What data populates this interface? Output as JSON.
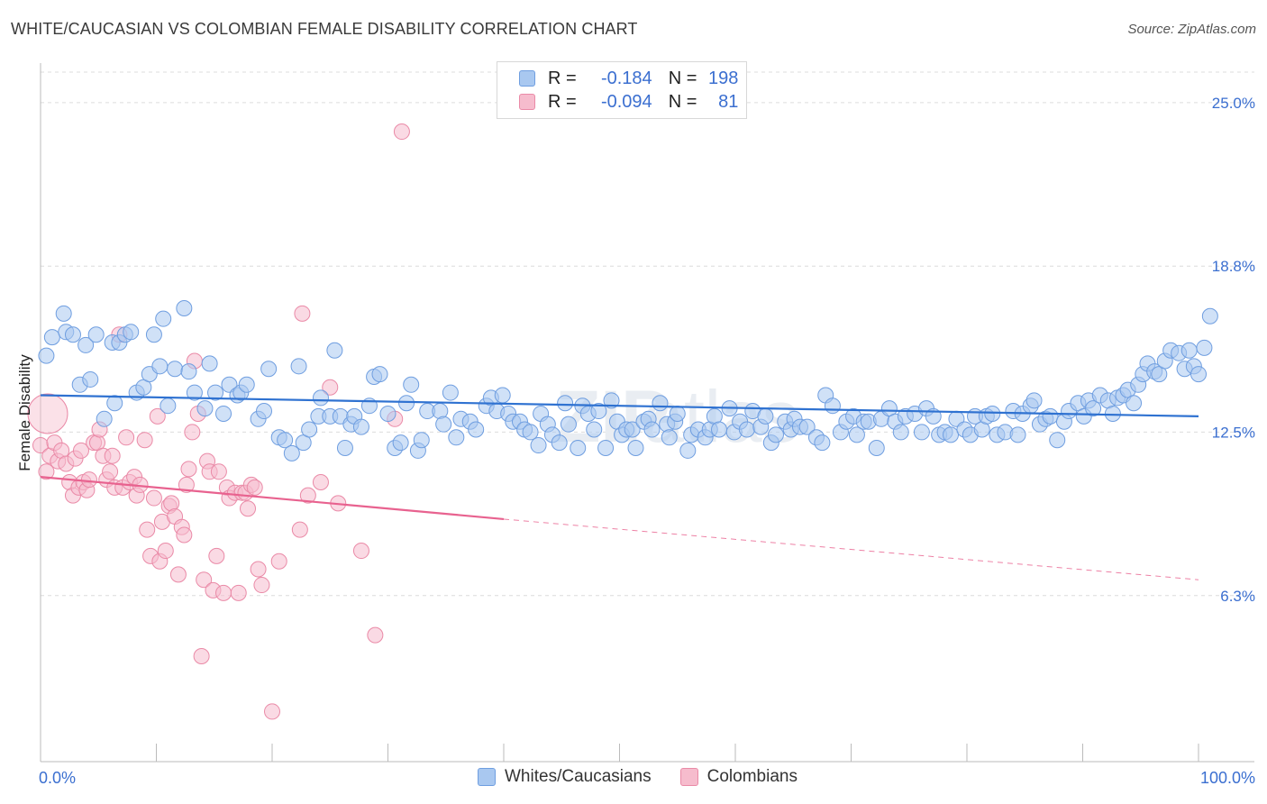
{
  "title": "WHITE/CAUCASIAN VS COLOMBIAN FEMALE DISABILITY CORRELATION CHART",
  "source": "Source: ZipAtlas.com",
  "legend": {
    "rows": [
      {
        "r_label": "R =",
        "r_value": "-0.184",
        "n_label": "N =",
        "n_value": "198"
      },
      {
        "r_label": "R =",
        "r_value": "-0.094",
        "n_label": "N =",
        "n_value": "81"
      }
    ]
  },
  "bottom_legend": [
    "Whites/Caucasians",
    "Colombians"
  ],
  "colors": {
    "blue_fill": "#a9c8f0",
    "blue_stroke": "#6f9ee0",
    "blue_line": "#2f72d1",
    "pink_fill": "#f6bccd",
    "pink_stroke": "#ea8aa7",
    "pink_line": "#e8628f",
    "tick_label": "#3b6fd0"
  },
  "chart_data": {
    "type": "scatter",
    "title": "WHITE/CAUCASIAN VS COLOMBIAN FEMALE DISABILITY CORRELATION CHART",
    "xlabel": "",
    "ylabel": "Female Disability",
    "xlim": [
      0,
      100
    ],
    "ylim": [
      0,
      26.5
    ],
    "x_tick_labels": [
      "0.0%",
      "100.0%"
    ],
    "y_ticks": [
      6.3,
      12.5,
      18.8,
      25.0
    ],
    "y_tick_labels": [
      "6.3%",
      "12.5%",
      "18.8%",
      "25.0%"
    ],
    "grid": true,
    "legend_position": "top-center",
    "series": [
      {
        "name": "Whites/Caucasians",
        "r": -0.184,
        "n": 198,
        "trend": {
          "x": [
            0,
            100
          ],
          "y": [
            13.9,
            13.1
          ]
        },
        "points": [
          [
            0.5,
            15.4
          ],
          [
            1,
            16.1
          ],
          [
            2,
            17.0
          ],
          [
            2.2,
            16.3
          ],
          [
            2.8,
            16.2
          ],
          [
            3.4,
            14.3
          ],
          [
            3.9,
            15.8
          ],
          [
            4.3,
            14.5
          ],
          [
            4.8,
            16.2
          ],
          [
            5.5,
            13.0
          ],
          [
            6.2,
            15.9
          ],
          [
            6.4,
            13.6
          ],
          [
            6.8,
            15.9
          ],
          [
            7.3,
            16.2
          ],
          [
            7.8,
            16.3
          ],
          [
            8.3,
            14.0
          ],
          [
            8.9,
            14.2
          ],
          [
            9.4,
            14.7
          ],
          [
            9.8,
            16.2
          ],
          [
            10.3,
            15.0
          ],
          [
            10.6,
            16.8
          ],
          [
            11,
            13.5
          ],
          [
            11.6,
            14.9
          ],
          [
            12.4,
            17.2
          ],
          [
            12.8,
            14.8
          ],
          [
            13.3,
            14.0
          ],
          [
            14.2,
            13.4
          ],
          [
            14.6,
            15.1
          ],
          [
            15.1,
            14.0
          ],
          [
            15.8,
            13.2
          ],
          [
            16.3,
            14.3
          ],
          [
            17,
            13.9
          ],
          [
            17.3,
            14.0
          ],
          [
            17.8,
            14.3
          ],
          [
            18.8,
            13.0
          ],
          [
            19.3,
            13.3
          ],
          [
            19.7,
            14.9
          ],
          [
            20.6,
            12.3
          ],
          [
            21.1,
            12.2
          ],
          [
            21.7,
            11.7
          ],
          [
            22.3,
            15.0
          ],
          [
            22.7,
            12.1
          ],
          [
            23.2,
            12.6
          ],
          [
            24,
            13.1
          ],
          [
            24.2,
            13.8
          ],
          [
            25,
            13.1
          ],
          [
            25.4,
            15.6
          ],
          [
            25.9,
            13.1
          ],
          [
            26.3,
            11.9
          ],
          [
            26.8,
            12.8
          ],
          [
            27.1,
            13.1
          ],
          [
            27.7,
            12.7
          ],
          [
            28.4,
            13.5
          ],
          [
            28.8,
            14.6
          ],
          [
            29.3,
            14.7
          ],
          [
            30,
            13.2
          ],
          [
            30.6,
            11.9
          ],
          [
            31.1,
            12.1
          ],
          [
            31.6,
            13.6
          ],
          [
            32,
            14.3
          ],
          [
            32.6,
            11.8
          ],
          [
            32.9,
            12.2
          ],
          [
            33.4,
            13.3
          ],
          [
            34.5,
            13.3
          ],
          [
            34.8,
            12.8
          ],
          [
            35.4,
            14.0
          ],
          [
            35.9,
            12.3
          ],
          [
            36.3,
            13.0
          ],
          [
            37.1,
            12.9
          ],
          [
            37.6,
            12.6
          ],
          [
            38.5,
            13.5
          ],
          [
            38.9,
            13.8
          ],
          [
            39.4,
            13.3
          ],
          [
            39.9,
            13.9
          ],
          [
            40.4,
            13.2
          ],
          [
            40.8,
            12.9
          ],
          [
            41.4,
            12.9
          ],
          [
            41.8,
            12.6
          ],
          [
            42.3,
            12.5
          ],
          [
            43,
            12.0
          ],
          [
            43.2,
            13.2
          ],
          [
            43.8,
            12.8
          ],
          [
            44.2,
            12.4
          ],
          [
            44.8,
            12.1
          ],
          [
            45.3,
            13.6
          ],
          [
            45.6,
            12.8
          ],
          [
            46.4,
            11.9
          ],
          [
            46.8,
            13.5
          ],
          [
            47.3,
            13.2
          ],
          [
            47.8,
            12.6
          ],
          [
            48.2,
            13.3
          ],
          [
            48.8,
            11.9
          ],
          [
            49.3,
            13.7
          ],
          [
            49.8,
            12.9
          ],
          [
            50.2,
            12.4
          ],
          [
            50.6,
            12.6
          ],
          [
            51.1,
            12.6
          ],
          [
            51.4,
            11.9
          ],
          [
            52.1,
            12.9
          ],
          [
            52.5,
            13.0
          ],
          [
            52.8,
            12.6
          ],
          [
            53.5,
            13.6
          ],
          [
            54.1,
            12.8
          ],
          [
            54.3,
            12.3
          ],
          [
            54.8,
            12.9
          ],
          [
            55,
            13.2
          ],
          [
            55.9,
            11.8
          ],
          [
            56.2,
            12.4
          ],
          [
            56.8,
            12.6
          ],
          [
            57.4,
            12.3
          ],
          [
            57.8,
            12.6
          ],
          [
            58.2,
            13.1
          ],
          [
            58.6,
            12.6
          ],
          [
            59.5,
            13.4
          ],
          [
            59.9,
            12.5
          ],
          [
            60.4,
            12.9
          ],
          [
            61,
            12.6
          ],
          [
            61.5,
            13.3
          ],
          [
            62.2,
            12.7
          ],
          [
            62.6,
            13.1
          ],
          [
            63.1,
            12.1
          ],
          [
            63.5,
            12.4
          ],
          [
            64.3,
            12.9
          ],
          [
            64.8,
            12.6
          ],
          [
            65.1,
            13.0
          ],
          [
            65.6,
            12.7
          ],
          [
            66.2,
            12.7
          ],
          [
            67,
            12.3
          ],
          [
            67.5,
            12.1
          ],
          [
            67.8,
            13.9
          ],
          [
            68.4,
            13.5
          ],
          [
            69.1,
            12.5
          ],
          [
            69.6,
            12.9
          ],
          [
            70.2,
            13.1
          ],
          [
            70.5,
            12.4
          ],
          [
            71.1,
            12.9
          ],
          [
            71.5,
            12.9
          ],
          [
            72.2,
            11.9
          ],
          [
            72.6,
            13.0
          ],
          [
            73.3,
            13.4
          ],
          [
            73.8,
            12.9
          ],
          [
            74.3,
            12.5
          ],
          [
            74.7,
            13.1
          ],
          [
            75.5,
            13.2
          ],
          [
            76.1,
            12.5
          ],
          [
            76.5,
            13.4
          ],
          [
            77.1,
            13.1
          ],
          [
            77.6,
            12.4
          ],
          [
            78.1,
            12.5
          ],
          [
            78.6,
            12.4
          ],
          [
            79.1,
            13.0
          ],
          [
            79.8,
            12.6
          ],
          [
            80.3,
            12.4
          ],
          [
            80.7,
            13.1
          ],
          [
            81.3,
            12.6
          ],
          [
            81.7,
            13.1
          ],
          [
            82.2,
            13.2
          ],
          [
            82.6,
            12.4
          ],
          [
            83.3,
            12.5
          ],
          [
            84,
            13.3
          ],
          [
            84.4,
            12.4
          ],
          [
            84.8,
            13.2
          ],
          [
            85.5,
            13.5
          ],
          [
            85.8,
            13.7
          ],
          [
            86.3,
            12.8
          ],
          [
            86.8,
            13.0
          ],
          [
            87.2,
            13.1
          ],
          [
            87.8,
            12.2
          ],
          [
            88.4,
            12.9
          ],
          [
            88.8,
            13.3
          ],
          [
            89.6,
            13.6
          ],
          [
            90.1,
            13.1
          ],
          [
            90.5,
            13.7
          ],
          [
            90.9,
            13.4
          ],
          [
            91.5,
            13.9
          ],
          [
            92.2,
            13.7
          ],
          [
            92.6,
            13.2
          ],
          [
            93,
            13.8
          ],
          [
            93.5,
            13.9
          ],
          [
            93.9,
            14.1
          ],
          [
            94.4,
            13.6
          ],
          [
            94.8,
            14.3
          ],
          [
            95.2,
            14.7
          ],
          [
            95.6,
            15.1
          ],
          [
            96.2,
            14.8
          ],
          [
            96.6,
            14.7
          ],
          [
            97.1,
            15.2
          ],
          [
            97.6,
            15.6
          ],
          [
            98.3,
            15.5
          ],
          [
            98.8,
            14.9
          ],
          [
            99.2,
            15.6
          ],
          [
            99.6,
            15.0
          ],
          [
            100,
            14.7
          ],
          [
            100.5,
            15.7
          ],
          [
            101,
            16.9
          ]
        ]
      },
      {
        "name": "Colombians",
        "r": -0.094,
        "n": 81,
        "trend": {
          "x": [
            0,
            40
          ],
          "y": [
            10.8,
            9.2
          ]
        },
        "trend_extended": {
          "x": [
            40,
            100
          ],
          "y": [
            9.2,
            6.9
          ]
        },
        "points": [
          [
            0,
            13.2
          ],
          [
            0,
            12.0
          ],
          [
            0.5,
            11.0
          ],
          [
            0.8,
            11.6
          ],
          [
            1.2,
            12.1
          ],
          [
            1.5,
            11.4
          ],
          [
            1.8,
            11.8
          ],
          [
            2.2,
            11.3
          ],
          [
            2.5,
            10.6
          ],
          [
            2.8,
            10.1
          ],
          [
            3,
            11.5
          ],
          [
            3.3,
            10.4
          ],
          [
            3.5,
            11.8
          ],
          [
            3.7,
            10.6
          ],
          [
            4,
            10.3
          ],
          [
            4.2,
            10.7
          ],
          [
            4.6,
            12.1
          ],
          [
            4.9,
            12.1
          ],
          [
            5.1,
            12.6
          ],
          [
            5.4,
            11.6
          ],
          [
            5.7,
            10.7
          ],
          [
            6,
            11.0
          ],
          [
            6.2,
            11.6
          ],
          [
            6.4,
            10.4
          ],
          [
            6.8,
            16.2
          ],
          [
            7.1,
            10.4
          ],
          [
            7.4,
            12.3
          ],
          [
            7.7,
            10.6
          ],
          [
            8.1,
            10.8
          ],
          [
            8.3,
            10.1
          ],
          [
            8.6,
            10.5
          ],
          [
            9,
            12.2
          ],
          [
            9.2,
            8.8
          ],
          [
            9.5,
            7.8
          ],
          [
            9.8,
            10.0
          ],
          [
            10.1,
            13.1
          ],
          [
            10.3,
            7.6
          ],
          [
            10.5,
            9.1
          ],
          [
            10.8,
            8.0
          ],
          [
            11.1,
            9.7
          ],
          [
            11.3,
            9.8
          ],
          [
            11.6,
            9.3
          ],
          [
            11.9,
            7.1
          ],
          [
            12.2,
            8.9
          ],
          [
            12.4,
            8.6
          ],
          [
            12.6,
            10.5
          ],
          [
            12.8,
            11.1
          ],
          [
            13.1,
            12.5
          ],
          [
            13.3,
            15.2
          ],
          [
            13.6,
            13.2
          ],
          [
            13.9,
            4.0
          ],
          [
            14.1,
            6.9
          ],
          [
            14.4,
            11.4
          ],
          [
            14.6,
            11.0
          ],
          [
            14.9,
            6.5
          ],
          [
            15.2,
            7.8
          ],
          [
            15.4,
            11.0
          ],
          [
            15.8,
            6.4
          ],
          [
            16.1,
            10.4
          ],
          [
            16.3,
            10.0
          ],
          [
            16.8,
            10.2
          ],
          [
            17.1,
            6.4
          ],
          [
            17.4,
            10.2
          ],
          [
            17.7,
            10.2
          ],
          [
            17.9,
            9.6
          ],
          [
            18.2,
            10.5
          ],
          [
            18.5,
            10.4
          ],
          [
            18.8,
            7.3
          ],
          [
            19.1,
            6.7
          ],
          [
            20,
            1.9
          ],
          [
            20.6,
            7.6
          ],
          [
            22.4,
            8.8
          ],
          [
            22.6,
            17.0
          ],
          [
            23.1,
            10.1
          ],
          [
            24.2,
            10.6
          ],
          [
            25,
            14.2
          ],
          [
            25.7,
            9.8
          ],
          [
            27.7,
            8.0
          ],
          [
            28.9,
            4.8
          ],
          [
            30.6,
            13.0
          ],
          [
            31.2,
            23.9
          ]
        ]
      }
    ]
  }
}
